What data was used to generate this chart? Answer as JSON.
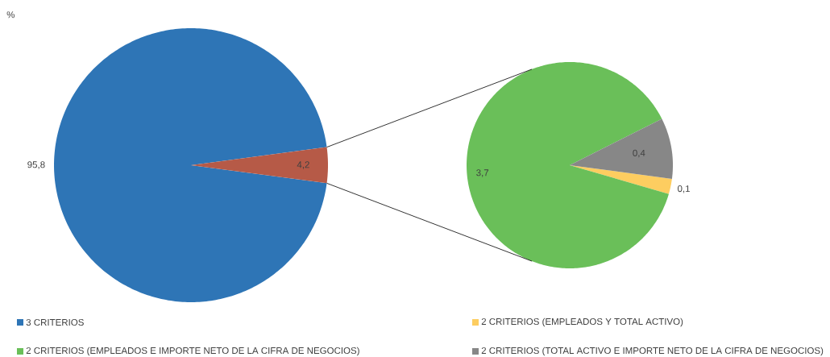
{
  "chart_data": [
    {
      "type": "pie",
      "annotations": [
        "%"
      ],
      "categories": [
        "3 CRITERIOS",
        null
      ],
      "values": [
        95.8,
        4.2
      ],
      "colors": [
        "#2e75b6",
        "#b65a47"
      ],
      "value_labels": [
        "95,8",
        "4,2"
      ],
      "legend": "bottom"
    },
    {
      "type": "pie",
      "categories": [
        "2 CRITERIOS (EMPLEADOS Y TOTAL ACTIVO)",
        "2 CRITERIOS (EMPLEADOS E IMPORTE NETO DE LA CIFRA DE NEGOCIOS)",
        "2 CRITERIOS (TOTAL ACTIVO E IMPORTE NETO DE LA CIFRA DE NEGOCIOS)"
      ],
      "values": [
        0.1,
        3.7,
        0.4
      ],
      "colors": [
        "#fdcd60",
        "#6abf59",
        "#878787"
      ],
      "value_labels": [
        "0,1",
        "3,7",
        "0,4"
      ],
      "legend": "bottom"
    }
  ]
}
